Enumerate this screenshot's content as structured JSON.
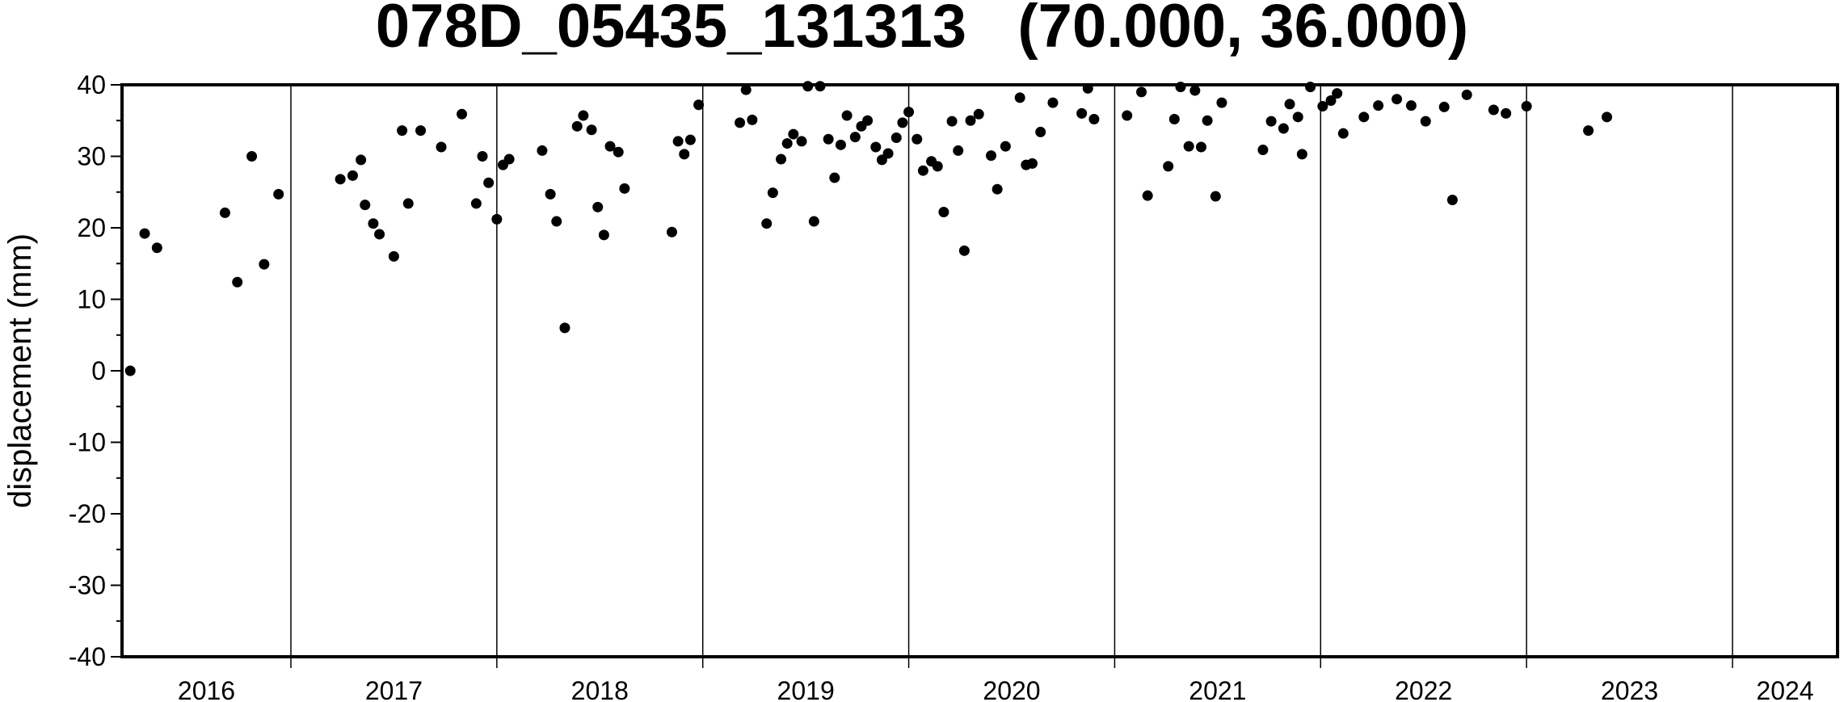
{
  "chart_data": {
    "type": "scatter",
    "title": "078D_05435_131313   (70.000, 36.000)",
    "y_label": "displacement (mm)",
    "color": "#000000",
    "xlim": [
      2016.18,
      2024.51
    ],
    "xgrid": [
      2017,
      2018,
      2019,
      2020,
      2021,
      2022,
      2023,
      2024
    ],
    "year_labels": [
      2016,
      2017,
      2018,
      2019,
      2020,
      2021,
      2022,
      2023,
      2024
    ],
    "ylim": [
      -40,
      40
    ],
    "yticks": [
      -40,
      -30,
      -20,
      -10,
      0,
      10,
      20,
      30,
      40
    ],
    "yminorticks": [
      -35,
      -25,
      -15,
      -5,
      5,
      15,
      25,
      35
    ],
    "x": [
      2016.22,
      2016.29,
      2016.35,
      2016.68,
      2016.74,
      2016.81,
      2016.87,
      2016.94,
      2017.24,
      2017.3,
      2017.34,
      2017.36,
      2017.4,
      2017.43,
      2017.5,
      2017.54,
      2017.57,
      2017.63,
      2017.73,
      2017.83,
      2017.9,
      2017.93,
      2017.96,
      2018.0,
      2018.03,
      2018.06,
      2018.22,
      2018.26,
      2018.29,
      2018.33,
      2018.39,
      2018.42,
      2018.46,
      2018.49,
      2018.52,
      2018.55,
      2018.59,
      2018.62,
      2018.85,
      2018.88,
      2018.91,
      2018.94,
      2018.98,
      2019.18,
      2019.21,
      2019.24,
      2019.31,
      2019.34,
      2019.38,
      2019.41,
      2019.44,
      2019.48,
      2019.51,
      2019.54,
      2019.57,
      2019.61,
      2019.64,
      2019.67,
      2019.7,
      2019.74,
      2019.77,
      2019.8,
      2019.84,
      2019.87,
      2019.9,
      2019.94,
      2019.97,
      2020.0,
      2020.04,
      2020.07,
      2020.11,
      2020.14,
      2020.17,
      2020.21,
      2020.24,
      2020.27,
      2020.3,
      2020.34,
      2020.4,
      2020.43,
      2020.47,
      2020.54,
      2020.57,
      2020.6,
      2020.64,
      2020.7,
      2020.84,
      2020.87,
      2020.9,
      2021.06,
      2021.13,
      2021.16,
      2021.26,
      2021.29,
      2021.32,
      2021.36,
      2021.39,
      2021.42,
      2021.45,
      2021.49,
      2021.52,
      2021.72,
      2021.76,
      2021.82,
      2021.85,
      2021.89,
      2021.91,
      2021.95,
      2022.01,
      2022.05,
      2022.08,
      2022.11,
      2022.21,
      2022.28,
      2022.37,
      2022.44,
      2022.51,
      2022.6,
      2022.64,
      2022.71,
      2022.84,
      2022.9,
      2023.0,
      2023.3,
      2023.39
    ],
    "values": [
      0,
      19.2,
      17.2,
      22.1,
      12.4,
      30.0,
      14.9,
      24.7,
      26.8,
      27.3,
      29.5,
      23.2,
      20.6,
      19.1,
      16.0,
      33.6,
      23.4,
      33.6,
      31.3,
      35.9,
      23.4,
      30.0,
      26.3,
      21.2,
      28.8,
      29.6,
      30.8,
      24.7,
      20.9,
      6.0,
      34.2,
      35.7,
      33.7,
      22.9,
      19.0,
      31.4,
      30.6,
      25.5,
      19.4,
      32.1,
      30.3,
      32.3,
      37.2,
      34.7,
      39.3,
      35.1,
      20.6,
      24.9,
      29.6,
      31.8,
      33.1,
      32.1,
      39.8,
      20.9,
      39.8,
      32.4,
      27.0,
      31.6,
      35.7,
      32.7,
      34.2,
      35.0,
      31.3,
      29.5,
      30.4,
      32.6,
      34.7,
      36.2,
      32.4,
      28.0,
      29.3,
      28.6,
      22.2,
      34.9,
      30.8,
      16.8,
      35.0,
      35.9,
      30.1,
      25.4,
      31.4,
      38.2,
      28.8,
      29.0,
      33.4,
      37.5,
      36.0,
      39.5,
      35.2,
      35.7,
      39.0,
      24.5,
      28.6,
      35.2,
      39.7,
      31.4,
      39.2,
      31.3,
      35.0,
      24.4,
      37.5,
      30.9,
      34.9,
      33.9,
      37.3,
      35.5,
      30.3,
      39.7,
      37.0,
      37.8,
      38.8,
      33.2,
      35.5,
      37.1,
      38.0,
      37.1,
      34.9,
      36.9,
      23.9,
      38.6,
      36.5,
      36.0,
      37.0,
      33.6,
      35.5
    ]
  }
}
